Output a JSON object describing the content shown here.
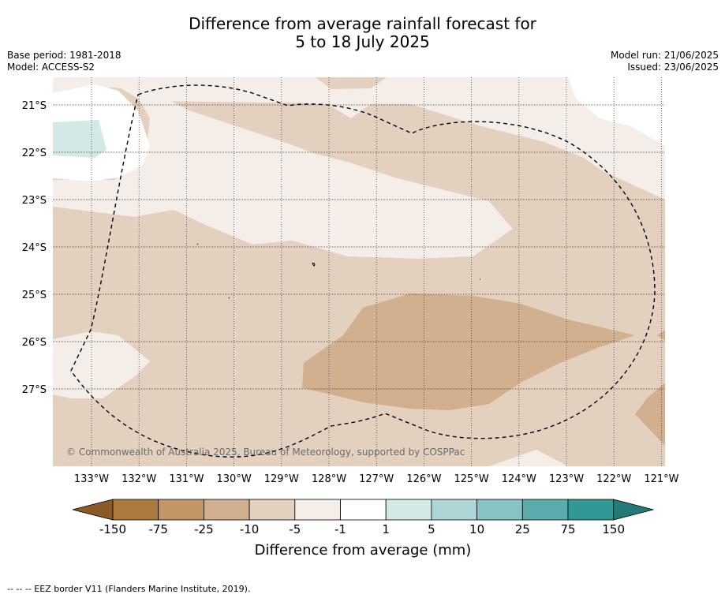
{
  "title": {
    "line1": "Difference from average rainfall forecast for",
    "line2": "5 to 18 July 2025"
  },
  "info_left": {
    "base_period": "Base period: 1981-2018",
    "model": "Model: ACCESS-S2"
  },
  "info_right": {
    "model_run": "Model run: 21/06/2025",
    "issued": "Issued: 23/06/2025"
  },
  "map": {
    "lon_ticks": [
      "133°W",
      "132°W",
      "131°W",
      "130°W",
      "129°W",
      "128°W",
      "127°W",
      "126°W",
      "125°W",
      "124°W",
      "123°W",
      "122°W",
      "121°W"
    ],
    "lat_ticks": [
      "21°S",
      "22°S",
      "23°S",
      "24°S",
      "25°S",
      "26°S",
      "27°S"
    ],
    "copyright": "© Commonwealth of Australia 2025, Bureau of Meteorology, supported by COSPPac"
  },
  "colorbar": {
    "ticks": [
      "-150",
      "-75",
      "-25",
      "-10",
      "-5",
      "-1",
      "1",
      "5",
      "10",
      "25",
      "75",
      "150"
    ],
    "colors": [
      "#ad7a3e",
      "#c29667",
      "#d2af8e",
      "#e3d0bf",
      "#f5ede7",
      "#ffffff",
      "#d4e8e8",
      "#aed6d6",
      "#86c3c2",
      "#5aacab",
      "#329895"
    ],
    "extend_low_color": "#8c5a26",
    "extend_high_color": "#237a78",
    "label": "Difference from average (mm)"
  },
  "footnote": "--  --  -- EEZ border V11 (Flanders Marine Institute, 2019)."
}
